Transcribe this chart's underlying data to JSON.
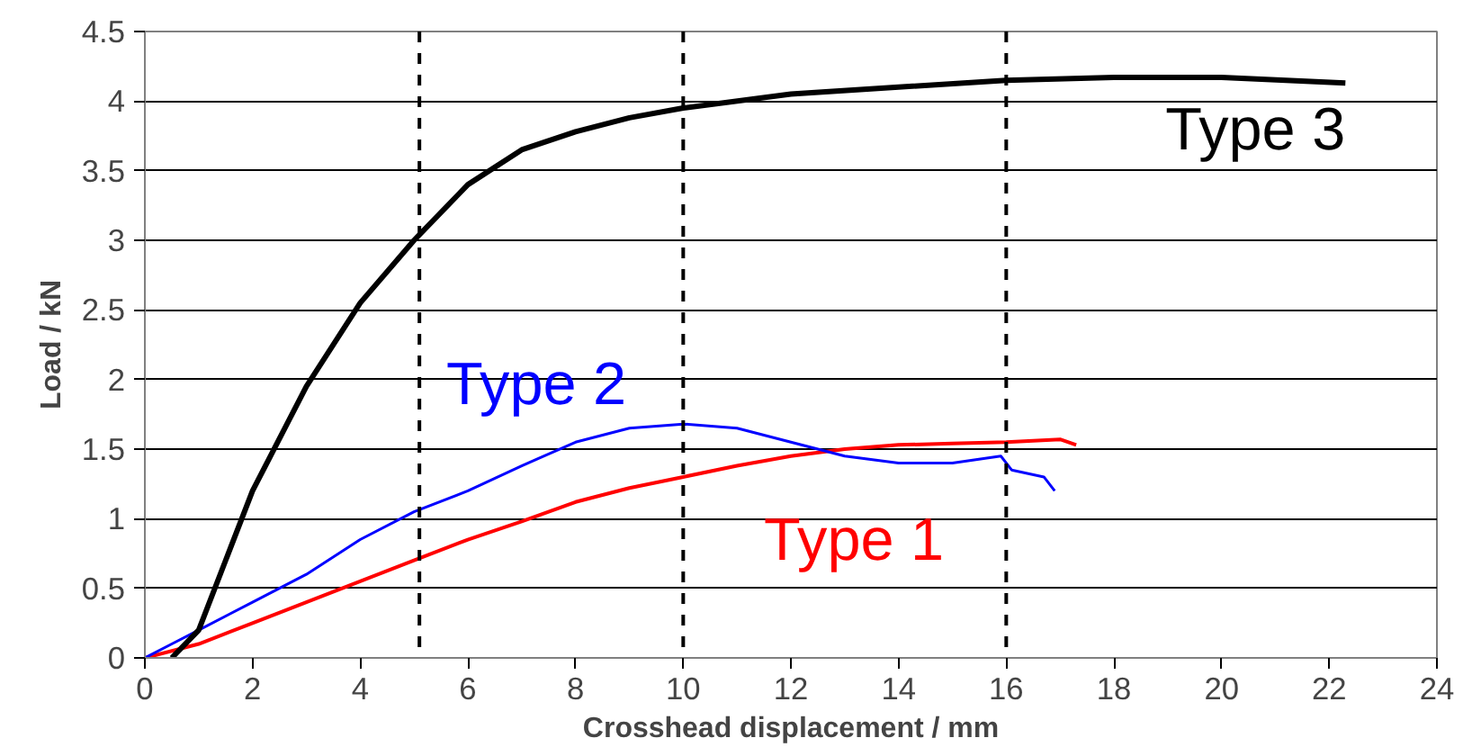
{
  "chart_data": {
    "type": "line",
    "xlabel": "Crosshead displacement / mm",
    "ylabel": "Load / kN",
    "xlim": [
      0,
      24
    ],
    "xticks": [
      0,
      2,
      4,
      6,
      8,
      10,
      12,
      14,
      16,
      18,
      20,
      22,
      24
    ],
    "ylim": [
      0,
      4.5
    ],
    "yticks": [
      0,
      0.5,
      1,
      1.5,
      2,
      2.5,
      3,
      3.5,
      4,
      4.5
    ],
    "grid": "y",
    "line_style": "solid",
    "marker": "none",
    "ref_lines": [
      {
        "axis": "x",
        "value": 5.1,
        "line_style": "dashed",
        "color": "#000000"
      },
      {
        "axis": "x",
        "value": 10,
        "line_style": "dashed",
        "color": "#000000"
      },
      {
        "axis": "x",
        "value": 16,
        "line_style": "dashed",
        "color": "#000000"
      }
    ],
    "series": [
      {
        "name": "Type 1",
        "color": "#ff0000",
        "x": [
          0,
          1,
          2,
          3,
          4,
          5,
          6,
          7,
          8,
          9,
          10,
          11,
          12,
          13,
          14,
          15,
          16,
          17,
          17.3
        ],
        "values": [
          0,
          0.1,
          0.25,
          0.4,
          0.55,
          0.7,
          0.85,
          0.98,
          1.12,
          1.22,
          1.3,
          1.38,
          1.45,
          1.5,
          1.53,
          1.54,
          1.55,
          1.57,
          1.53
        ]
      },
      {
        "name": "Type 2",
        "color": "#0000ff",
        "x": [
          0,
          0.5,
          1,
          2,
          3,
          4,
          5,
          6,
          7,
          8,
          9,
          10,
          11,
          12,
          13,
          14,
          15,
          15.9,
          16.1,
          16.7,
          16.9
        ],
        "values": [
          0,
          0.1,
          0.2,
          0.4,
          0.6,
          0.85,
          1.05,
          1.2,
          1.38,
          1.55,
          1.65,
          1.68,
          1.65,
          1.55,
          1.45,
          1.4,
          1.4,
          1.45,
          1.35,
          1.3,
          1.2
        ]
      },
      {
        "name": "Type 3",
        "color": "#000000",
        "x": [
          0.5,
          1,
          1.5,
          2,
          3,
          4,
          5,
          6,
          7,
          8,
          9,
          10,
          12,
          14,
          16,
          18,
          20,
          22.3
        ],
        "values": [
          0,
          0.2,
          0.7,
          1.2,
          1.95,
          2.55,
          3.0,
          3.4,
          3.65,
          3.78,
          3.88,
          3.95,
          4.05,
          4.1,
          4.15,
          4.17,
          4.17,
          4.13
        ]
      }
    ]
  }
}
